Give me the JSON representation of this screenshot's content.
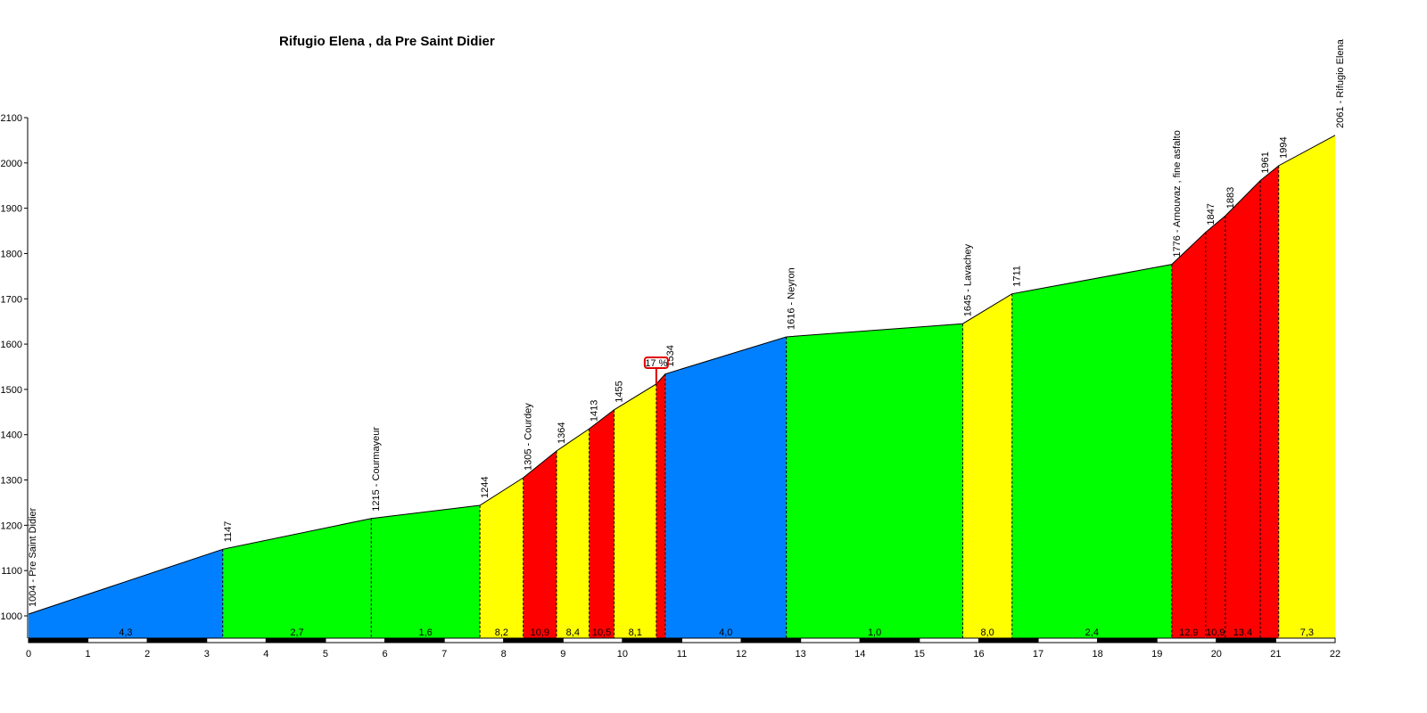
{
  "chart_data": {
    "type": "area",
    "title": "Rifugio Elena , da Pre Saint Didier",
    "xlabel": "",
    "ylabel": "",
    "xlim": [
      0,
      22
    ],
    "ylim": [
      950,
      2100
    ],
    "x_ticks": [
      "0",
      "1",
      "2",
      "3",
      "4",
      "5",
      "6",
      "7",
      "8",
      "9",
      "10",
      "11",
      "12",
      "13",
      "14",
      "15",
      "16",
      "17",
      "18",
      "19",
      "20",
      "21",
      "22"
    ],
    "y_ticks": [
      "1000",
      "1100",
      "1200",
      "1300",
      "1400",
      "1500",
      "1600",
      "1700",
      "1800",
      "1900",
      "2000",
      "2100"
    ],
    "points": [
      {
        "km": 0,
        "elev": 1004,
        "label": "1004 - Pre Saint Didier"
      },
      {
        "km": 3.27,
        "elev": 1147,
        "label": "1147"
      },
      {
        "km": 5.77,
        "elev": 1215,
        "label": "1215 - Courmayeur"
      },
      {
        "km": 7.6,
        "elev": 1244,
        "label": "1244"
      },
      {
        "km": 8.33,
        "elev": 1305,
        "label": "1305 - Courdey"
      },
      {
        "km": 8.89,
        "elev": 1364,
        "label": "1364"
      },
      {
        "km": 9.44,
        "elev": 1413,
        "label": "1413"
      },
      {
        "km": 9.86,
        "elev": 1455,
        "label": "1455"
      },
      {
        "km": 10.57,
        "elev": 1512,
        "label": null
      },
      {
        "km": 10.72,
        "elev": 1534,
        "label": "1534"
      },
      {
        "km": 12.76,
        "elev": 1616,
        "label": "1616 - Neyron"
      },
      {
        "km": 15.73,
        "elev": 1645,
        "label": "1645 - Lavachey"
      },
      {
        "km": 16.56,
        "elev": 1711,
        "label": "1711"
      },
      {
        "km": 19.25,
        "elev": 1776,
        "label": "1776 - Arnouvaz , fine asfalto"
      },
      {
        "km": 19.82,
        "elev": 1847,
        "label": "1847"
      },
      {
        "km": 20.15,
        "elev": 1883,
        "label": "1883"
      },
      {
        "km": 20.74,
        "elev": 1961,
        "label": "1961"
      },
      {
        "km": 21.05,
        "elev": 1994,
        "label": "1994"
      },
      {
        "km": 22,
        "elev": 2061,
        "label": "2061 - Rifugio Elena"
      }
    ],
    "segments": [
      {
        "gradient": "4,3",
        "color": "#0080ff"
      },
      {
        "gradient": "2,7",
        "color": "#00ff00"
      },
      {
        "gradient": "1,6",
        "color": "#00ff00"
      },
      {
        "gradient": "8,2",
        "color": "#ffff00"
      },
      {
        "gradient": "10,9",
        "color": "#ff0000"
      },
      {
        "gradient": "8,4",
        "color": "#ffff00"
      },
      {
        "gradient": "10,5",
        "color": "#ff0000"
      },
      {
        "gradient": "8,1",
        "color": "#ffff00"
      },
      {
        "gradient": null,
        "color": "#ff0000"
      },
      {
        "gradient": "4,0",
        "color": "#0080ff"
      },
      {
        "gradient": "1,0",
        "color": "#00ff00"
      },
      {
        "gradient": "8,0",
        "color": "#ffff00"
      },
      {
        "gradient": "2,4",
        "color": "#00ff00"
      },
      {
        "gradient": "12,9",
        "color": "#ff0000"
      },
      {
        "gradient": "10,9",
        "color": "#ff0000"
      },
      {
        "gradient": "13,4",
        "color": "#ff0000"
      },
      {
        "gradient": null,
        "color": "#ff0000"
      },
      {
        "gradient": "7,3",
        "color": "#ffff00"
      }
    ],
    "annotations": [
      {
        "km": 10.57,
        "elev": 1512,
        "text": "17 %"
      }
    ]
  }
}
